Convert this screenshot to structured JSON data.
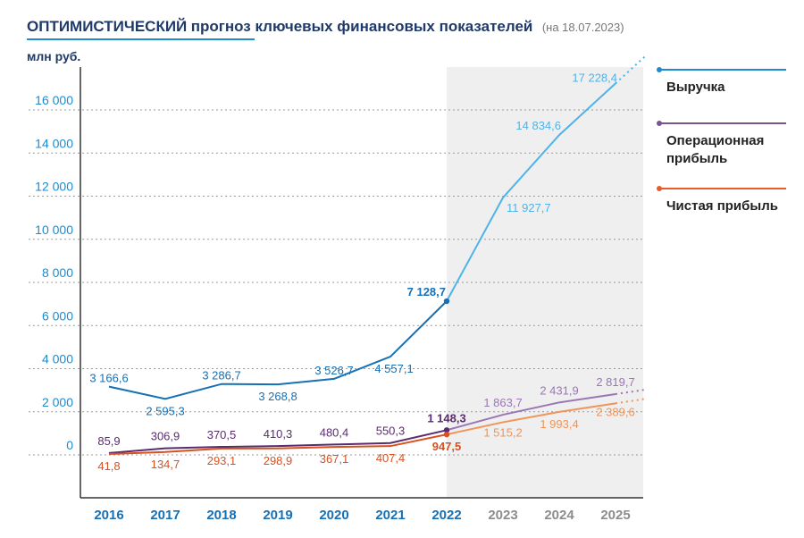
{
  "chart_data": {
    "type": "line",
    "title_bold": "ОПТИМИСТИЧЕСКИЙ",
    "title_rest": "прогноз ключевых финансовых показателей",
    "title_date": "(на 18.07.2023)",
    "ylabel": "млн руб.",
    "xlabel": "",
    "ylim": [
      -2300,
      17800
    ],
    "yticks": [
      "0",
      "2 000",
      "4 000",
      "6 000",
      "8 000",
      "10 000",
      "12 000",
      "14 000",
      "16 000"
    ],
    "ytick_values": [
      0,
      2000,
      4000,
      6000,
      8000,
      10000,
      12000,
      14000,
      16000
    ],
    "categories": [
      "2016",
      "2017",
      "2018",
      "2019",
      "2020",
      "2021",
      "2022",
      "2023",
      "2024",
      "2025"
    ],
    "forecast_from_index": 7,
    "grid": "horizontal dashed",
    "legend": [
      "Выручка",
      "Операционная прибыль",
      "Чистая прибыль"
    ],
    "legend_position": "right",
    "colors": {
      "revenue_actual": "#1570b5",
      "revenue_forecast": "#4fb3e8",
      "operating_actual": "#5a2c6e",
      "operating_forecast": "#9b76b4",
      "net_actual": "#d9511e",
      "net_forecast": "#f09459",
      "forecast_band": "#efefef",
      "axis_year_actual": "#1570b5",
      "axis_year_forecast": "#8c8c8c"
    },
    "series": [
      {
        "name": "Выручка",
        "values": [
          3166.6,
          2595.3,
          3286.7,
          3268.8,
          3526.7,
          4557.1,
          7128.7,
          11927.7,
          14834.6,
          17228.4
        ],
        "labels": [
          "3 166,6",
          "2 595,3",
          "3 286,7",
          "3 268,8",
          "3 526,7",
          "4 557,1",
          "7 128,7",
          "11 927,7",
          "14 834,6",
          "17 228,4"
        ]
      },
      {
        "name": "Операционная прибыль",
        "values": [
          85.9,
          306.9,
          370.5,
          410.3,
          480.4,
          550.3,
          1148.3,
          1863.7,
          2431.9,
          2819.7
        ],
        "labels": [
          "85,9",
          "306,9",
          "370,5",
          "410,3",
          "480,4",
          "550,3",
          "1 148,3",
          "1 863,7",
          "2 431,9",
          "2 819,7"
        ]
      },
      {
        "name": "Чистая прибыль",
        "values": [
          41.8,
          134.7,
          293.1,
          298.9,
          367.1,
          407.4,
          947.5,
          1515.2,
          1993.4,
          2389.6
        ],
        "labels": [
          "41,8",
          "134,7",
          "293,1",
          "298,9",
          "367,1",
          "407,4",
          "947,5",
          "1 515,2",
          "1 993,4",
          "2 389,6"
        ]
      }
    ]
  }
}
